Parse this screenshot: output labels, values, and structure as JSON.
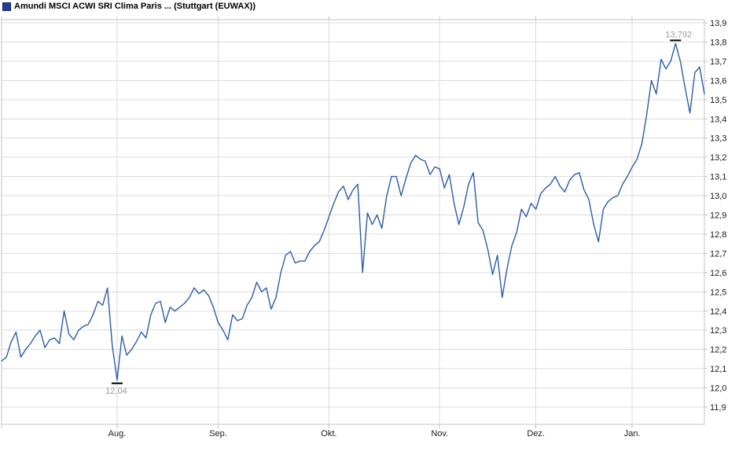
{
  "window": {
    "title": "Amundi MSCI ACWI SRI Clima Paris ... (Stuttgart (EUWAX))"
  },
  "colors": {
    "line": "#2b5da8",
    "legend_square": "#1e3c9b",
    "legend_square_border": "#13265f",
    "grid": "#dcdcdc",
    "plot_border": "#c4c4c4",
    "axis_text": "#1a1a1a",
    "annotation_text": "#9b9b9b",
    "marker": "#000000",
    "background": "#ffffff"
  },
  "chart_data": {
    "type": "line",
    "title": "Amundi MSCI ACWI SRI Clima Paris ... (Stuttgart (EUWAX))",
    "ylabel": "",
    "xlabel": "",
    "ylim": [
      11.9,
      13.9
    ],
    "grid": true,
    "y_tick_labels": [
      "13,9",
      "13,8",
      "13,7",
      "13,6",
      "13,5",
      "13,4",
      "13,3",
      "13,2",
      "13,1",
      "13,0",
      "12,9",
      "12,8",
      "12,7",
      "12,6",
      "12,5",
      "12,4",
      "12,3",
      "12,2",
      "12,1",
      "12,0",
      "11,9"
    ],
    "months": [
      {
        "i": 0,
        "label": ""
      },
      {
        "i": 24,
        "label": "Aug."
      },
      {
        "i": 45,
        "label": "Sep."
      },
      {
        "i": 68,
        "label": "Okt."
      },
      {
        "i": 91,
        "label": "Nov."
      },
      {
        "i": 111,
        "label": "Dez."
      },
      {
        "i": 131,
        "label": "Jan."
      }
    ],
    "values": [
      12.14,
      12.16,
      12.24,
      12.29,
      12.16,
      12.2,
      12.23,
      12.27,
      12.3,
      12.21,
      12.25,
      12.26,
      12.23,
      12.4,
      12.28,
      12.25,
      12.3,
      12.32,
      12.33,
      12.38,
      12.45,
      12.43,
      12.52,
      12.22,
      12.04,
      12.27,
      12.17,
      12.2,
      12.24,
      12.29,
      12.26,
      12.38,
      12.44,
      12.45,
      12.34,
      12.42,
      12.4,
      12.42,
      12.44,
      12.47,
      12.52,
      12.49,
      12.51,
      12.48,
      12.42,
      12.34,
      12.3,
      12.25,
      12.38,
      12.35,
      12.36,
      12.43,
      12.47,
      12.55,
      12.5,
      12.52,
      12.41,
      12.47,
      12.6,
      12.69,
      12.71,
      12.65,
      12.66,
      12.66,
      12.71,
      12.74,
      12.76,
      12.82,
      12.89,
      12.96,
      13.02,
      13.05,
      12.98,
      13.03,
      13.06,
      12.6,
      12.91,
      12.85,
      12.9,
      12.83,
      13.0,
      13.1,
      13.1,
      13.0,
      13.09,
      13.17,
      13.21,
      13.19,
      13.18,
      13.11,
      13.15,
      13.14,
      13.04,
      13.11,
      12.96,
      12.85,
      12.94,
      13.06,
      13.12,
      12.86,
      12.82,
      12.72,
      12.59,
      12.69,
      12.47,
      12.62,
      12.74,
      12.81,
      12.93,
      12.89,
      12.96,
      12.93,
      13.01,
      13.04,
      13.06,
      13.1,
      13.05,
      13.02,
      13.08,
      13.11,
      13.12,
      13.03,
      12.98,
      12.85,
      12.76,
      12.93,
      12.97,
      12.99,
      13.0,
      13.06,
      13.1,
      13.15,
      13.19,
      13.27,
      13.42,
      13.6,
      13.53,
      13.71,
      13.66,
      13.7,
      13.792,
      13.7,
      13.56,
      13.43,
      13.64,
      13.67,
      13.53
    ],
    "annotations": {
      "high": {
        "i": 140,
        "label": "13,792"
      },
      "low": {
        "i": 24,
        "label": "12,04"
      }
    }
  }
}
